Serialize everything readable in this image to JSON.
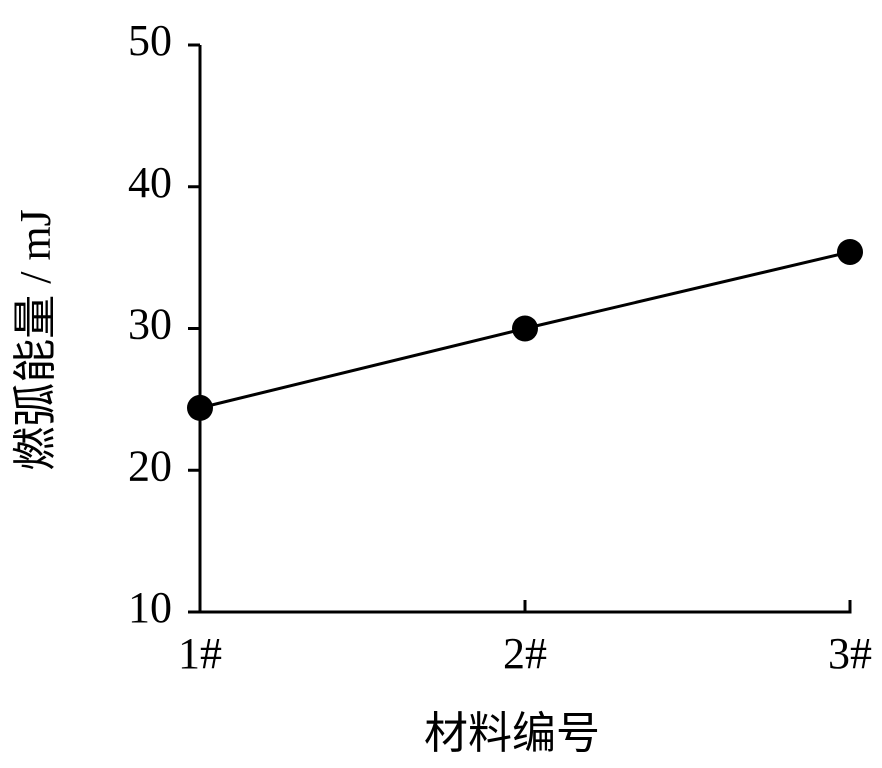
{
  "chart_data": {
    "type": "line",
    "x_label": "材料编号",
    "y_label": "燃弧能量 / mJ",
    "categories": [
      "1#",
      "2#",
      "3#"
    ],
    "values": [
      24.4,
      30.0,
      35.4
    ],
    "color": "#000000",
    "ylim": [
      10,
      50
    ],
    "yticks": [
      10,
      20,
      30,
      40,
      50
    ],
    "grid": false
  }
}
